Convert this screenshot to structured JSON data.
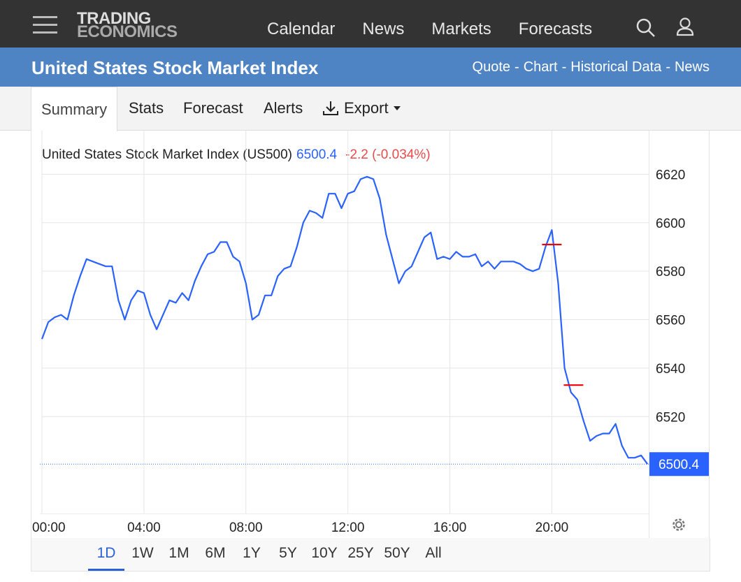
{
  "header": {
    "logo": [
      "TRADING",
      "ECONOMICS"
    ],
    "nav": [
      "Calendar",
      "News",
      "Markets",
      "Forecasts"
    ]
  },
  "banner": {
    "title": "United States Stock Market Index",
    "links": [
      "Quote",
      "Chart",
      "Historical Data",
      "News"
    ],
    "link_separator": "-"
  },
  "tabs": [
    "Summary",
    "Stats",
    "Forecast",
    "Alerts",
    "Export"
  ],
  "chart_data": {
    "type": "line",
    "title": "United States Stock Market Index (US500)",
    "last_value": 6500.4,
    "change": "-2.2 (-0.034%)",
    "color": "#2962ff",
    "x": [
      0,
      0.25,
      0.5,
      0.75,
      1,
      1.25,
      1.5,
      1.75,
      2,
      2.25,
      2.5,
      2.75,
      3,
      3.25,
      3.5,
      3.75,
      4,
      4.25,
      4.5,
      4.75,
      5,
      5.25,
      5.5,
      5.75,
      6,
      6.25,
      6.5,
      6.75,
      7,
      7.25,
      7.5,
      7.75,
      8,
      8.25,
      8.5,
      8.75,
      9,
      9.25,
      9.5,
      9.75,
      10,
      10.25,
      10.5,
      10.75,
      11,
      11.25,
      11.5,
      11.75,
      12,
      12.25,
      12.5,
      12.75,
      13,
      13.25,
      13.5,
      13.75,
      14,
      14.25,
      14.5,
      14.75,
      15,
      15.25,
      15.5,
      15.75,
      16,
      16.25,
      16.5,
      16.75,
      17,
      17.25,
      17.5,
      17.75,
      18,
      18.25,
      18.5,
      18.75,
      19,
      19.25,
      19.5,
      19.75,
      20,
      20.25,
      20.5,
      20.75,
      21,
      21.25,
      21.5,
      21.75,
      22,
      22.25,
      22.5,
      22.75,
      23,
      23.25,
      23.5,
      23.75
    ],
    "values": [
      6552,
      6559,
      6561,
      6562,
      6560,
      6570,
      6578,
      6585,
      6584,
      6583,
      6582,
      6582,
      6568,
      6560,
      6568,
      6572,
      6571,
      6562,
      6556,
      6562,
      6568,
      6567,
      6571,
      6568,
      6576,
      6582,
      6587,
      6588,
      6592,
      6592,
      6586,
      6584,
      6575,
      6560,
      6562,
      6570,
      6570,
      6578,
      6581,
      6582,
      6590,
      6600,
      6605,
      6604,
      6602,
      6612,
      6612,
      6606,
      6612,
      6613,
      6618,
      6619,
      6618,
      6610,
      6595,
      6585,
      6575,
      6580,
      6582,
      6588,
      6594,
      6596,
      6585,
      6586,
      6585,
      6588,
      6586,
      6586,
      6587,
      6582,
      6584,
      6581,
      6584,
      6584,
      6584,
      6583,
      6581,
      6580,
      6581,
      6590,
      6597,
      6575,
      6540,
      6530,
      6527,
      6518,
      6510,
      6512,
      6513,
      6513,
      6517,
      6508,
      6503,
      6503,
      6504,
      6500.4
    ],
    "events": [
      {
        "x": 20.0,
        "value": 6591
      },
      {
        "x": 20.85,
        "value": 6533
      }
    ],
    "xlim": [
      0,
      23.8
    ],
    "ylim": [
      6480,
      6638
    ],
    "xticks": [
      {
        "value": 0,
        "label": "00:00"
      },
      {
        "value": 4,
        "label": "04:00"
      },
      {
        "value": 8,
        "label": "08:00"
      },
      {
        "value": 12,
        "label": "12:00"
      },
      {
        "value": 16,
        "label": "16:00"
      },
      {
        "value": 20,
        "label": "20:00"
      }
    ],
    "yticks": [
      6520,
      6540,
      6560,
      6580,
      6600,
      6620
    ],
    "grid": true
  },
  "ranges": [
    "1D",
    "1W",
    "1M",
    "6M",
    "1Y",
    "5Y",
    "10Y",
    "25Y",
    "50Y",
    "All"
  ]
}
